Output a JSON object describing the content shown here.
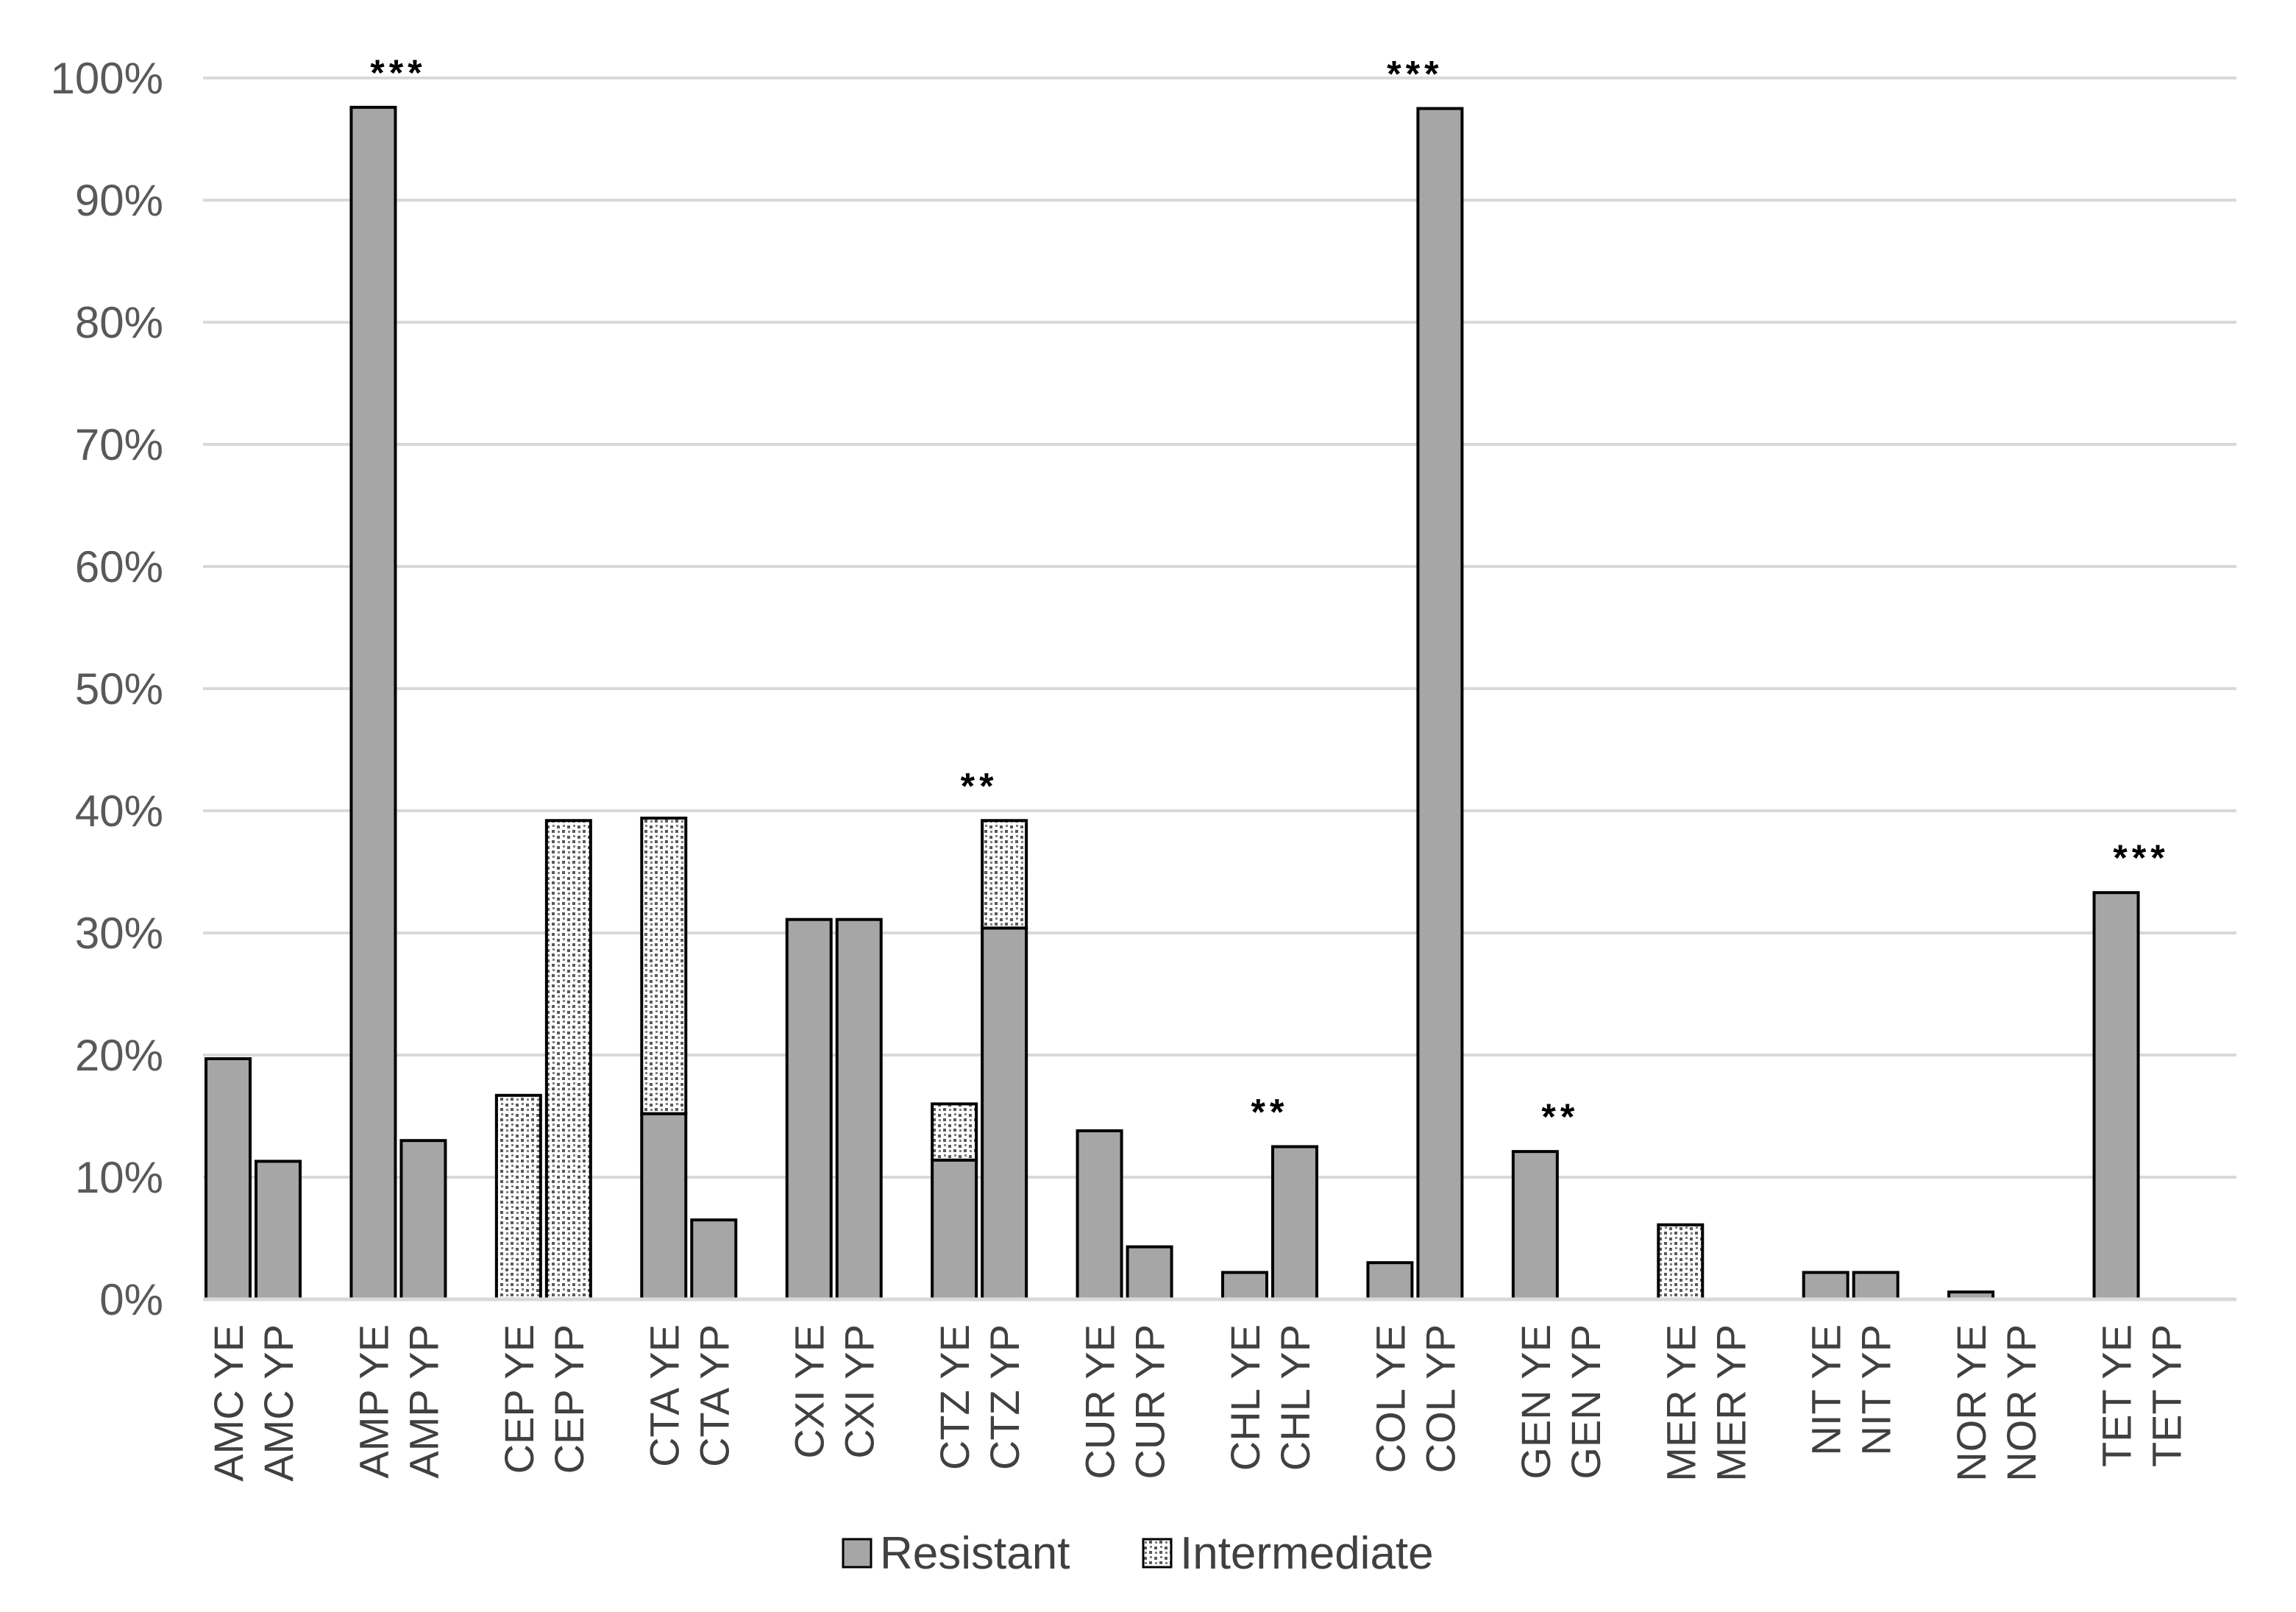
{
  "colors": {
    "resistant": "#a6a6a6",
    "intermediate_base": "#ffffff",
    "intermediate_dots": "#595959",
    "gridline": "#d9d9d9",
    "bar_stroke": "#000000",
    "axis_text": "#595959"
  },
  "chart_data": {
    "type": "bar",
    "stacked": true,
    "ylim": [
      0,
      100
    ],
    "y_ticks": [
      "0%",
      "10%",
      "20%",
      "30%",
      "40%",
      "50%",
      "60%",
      "70%",
      "80%",
      "90%",
      "100%"
    ],
    "grid": true,
    "legend_position": "bottom",
    "groups": [
      {
        "categories": [
          "AMC YE",
          "AMC YP"
        ],
        "resistant": [
          19.7,
          11.3
        ],
        "intermediate": [
          0,
          0
        ],
        "significance": ""
      },
      {
        "categories": [
          "AMP YE",
          "AMP YP"
        ],
        "resistant": [
          97.6,
          13.0
        ],
        "intermediate": [
          0,
          0
        ],
        "significance": "***"
      },
      {
        "categories": [
          "CEP YE",
          "CEP YP"
        ],
        "resistant": [
          0,
          0
        ],
        "intermediate": [
          16.7,
          39.2
        ],
        "significance": ""
      },
      {
        "categories": [
          "CTA YE",
          "CTA YP"
        ],
        "resistant": [
          15.2,
          6.5
        ],
        "intermediate": [
          24.2,
          0
        ],
        "significance": ""
      },
      {
        "categories": [
          "CXI YE",
          "CXI YP"
        ],
        "resistant": [
          31.1,
          31.1
        ],
        "intermediate": [
          0,
          0
        ],
        "significance": ""
      },
      {
        "categories": [
          "CTZ YE",
          "CTZ YP"
        ],
        "resistant": [
          11.4,
          30.4
        ],
        "intermediate": [
          4.6,
          8.8
        ],
        "significance": "**"
      },
      {
        "categories": [
          "CUR YE",
          "CUR YP"
        ],
        "resistant": [
          13.8,
          4.3
        ],
        "intermediate": [
          0,
          0
        ],
        "significance": ""
      },
      {
        "categories": [
          "CHL YE",
          "CHL YP"
        ],
        "resistant": [
          2.2,
          12.5
        ],
        "intermediate": [
          0,
          0
        ],
        "significance": "**"
      },
      {
        "categories": [
          "COL YE",
          "COL YP"
        ],
        "resistant": [
          3.0,
          97.5
        ],
        "intermediate": [
          0,
          0
        ],
        "significance": "***"
      },
      {
        "categories": [
          "GEN YE",
          "GEN YP"
        ],
        "resistant": [
          12.1,
          0
        ],
        "intermediate": [
          0,
          0
        ],
        "significance": "**"
      },
      {
        "categories": [
          "MER YE",
          "MER YP"
        ],
        "resistant": [
          0,
          0
        ],
        "intermediate": [
          6.1,
          0
        ],
        "significance": ""
      },
      {
        "categories": [
          "NIT YE",
          "NIT YP"
        ],
        "resistant": [
          2.2,
          2.2
        ],
        "intermediate": [
          0,
          0
        ],
        "significance": ""
      },
      {
        "categories": [
          "NOR YE",
          "NOR YP"
        ],
        "resistant": [
          0.6,
          0
        ],
        "intermediate": [
          0,
          0
        ],
        "significance": ""
      },
      {
        "categories": [
          "TET YE",
          "TET YP"
        ],
        "resistant": [
          33.3,
          0
        ],
        "intermediate": [
          0,
          0
        ],
        "significance": "***"
      }
    ],
    "series": [
      {
        "name": "Resistant",
        "key": "resistant"
      },
      {
        "name": "Intermediate",
        "key": "intermediate"
      }
    ]
  }
}
